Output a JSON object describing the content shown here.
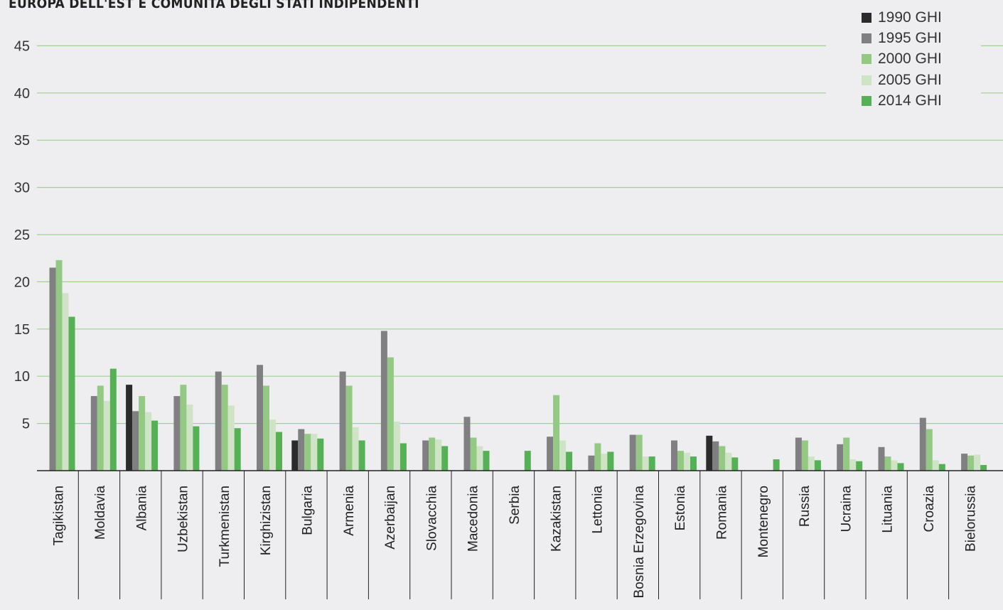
{
  "chart_data": {
    "type": "bar",
    "title": "EUROPA DELL'EST E COMUNITÀ DEGLI STATI INDIPENDENTI",
    "xlabel": "",
    "ylabel": "",
    "ylim": [
      0,
      45
    ],
    "yticks": [
      5,
      10,
      15,
      20,
      25,
      30,
      35,
      40,
      45
    ],
    "grid": true,
    "legend_position": "top-right",
    "categories": [
      "Tagikistan",
      "Moldavia",
      "Albania",
      "Uzbekistan",
      "Turkmenistan",
      "Kirghizistan",
      "Bulgaria",
      "Armenia",
      "Azerbaijan",
      "Slovacchia",
      "Macedonia",
      "Serbia",
      "Kazakistan",
      "Lettonia",
      "Bosnia Erzegovina",
      "Estonia",
      "Romania",
      "Montenegro",
      "Russia",
      "Ucraina",
      "Lituania",
      "Croazia",
      "Bielorussia"
    ],
    "series": [
      {
        "name": "1990 GHI",
        "color": "#2b2b2b",
        "values": [
          null,
          null,
          9.1,
          null,
          null,
          null,
          3.2,
          null,
          null,
          null,
          null,
          null,
          null,
          null,
          null,
          null,
          3.7,
          null,
          null,
          null,
          null,
          null,
          null
        ]
      },
      {
        "name": "1995 GHI",
        "color": "#808083",
        "values": [
          21.5,
          7.9,
          6.3,
          7.9,
          10.5,
          11.2,
          4.4,
          10.5,
          14.8,
          3.2,
          5.7,
          null,
          3.6,
          1.6,
          3.8,
          3.2,
          3.1,
          null,
          3.5,
          2.8,
          2.5,
          5.6,
          1.8
        ]
      },
      {
        "name": "2000 GHI",
        "color": "#94c983",
        "values": [
          22.3,
          9.0,
          7.9,
          9.1,
          9.1,
          9.0,
          3.9,
          9.0,
          12.0,
          3.5,
          3.5,
          null,
          8.0,
          2.9,
          3.8,
          2.1,
          2.6,
          null,
          3.2,
          3.5,
          1.5,
          4.4,
          1.6
        ]
      },
      {
        "name": "2005 GHI",
        "color": "#cfe3c7",
        "values": [
          18.8,
          7.4,
          6.2,
          7.0,
          6.9,
          5.4,
          3.9,
          4.6,
          5.2,
          3.3,
          2.6,
          null,
          3.2,
          1.8,
          1.5,
          1.9,
          1.9,
          null,
          1.5,
          1.2,
          1.1,
          1.1,
          1.7
        ]
      },
      {
        "name": "2014 GHI",
        "color": "#56b055",
        "values": [
          16.3,
          10.8,
          5.3,
          4.7,
          4.5,
          4.1,
          3.4,
          3.2,
          2.9,
          2.6,
          2.1,
          2.1,
          2.0,
          2.0,
          1.5,
          1.5,
          1.4,
          1.2,
          1.1,
          1.0,
          0.8,
          0.7,
          0.6
        ]
      }
    ]
  }
}
